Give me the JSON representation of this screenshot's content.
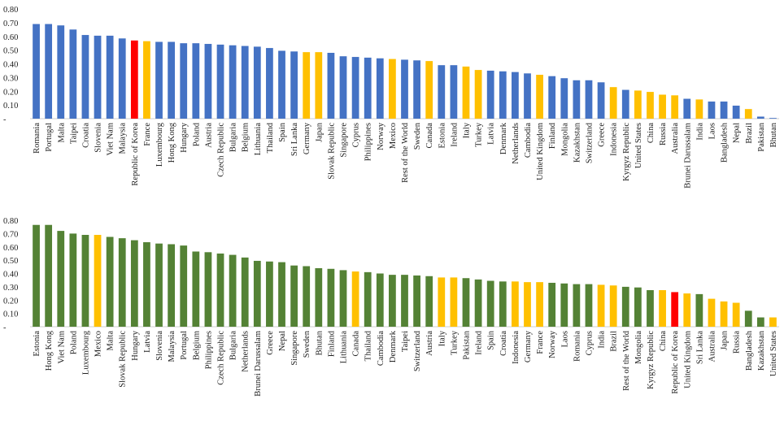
{
  "chart_data": [
    {
      "type": "bar",
      "ylim": [
        0,
        0.8
      ],
      "yticks": [
        "-",
        "0.10",
        "0.20",
        "0.30",
        "0.40",
        "0.50",
        "0.60",
        "0.70",
        "0.80"
      ],
      "grid": false,
      "colors": {
        "default": "#4472C4",
        "highlight_yellow": "#FFC000",
        "highlight_red": "#FF0000"
      },
      "categories": [
        "Romania",
        "Portugal",
        "Malta",
        "Taipei",
        "Croatia",
        "Slovenia",
        "Viet Nam",
        "Malaysia",
        "Republic of Korea",
        "France",
        "Luxembourg",
        "Hong Kong",
        "Hungary",
        "Poland",
        "Austria",
        "Czech Republic",
        "Bulgaria",
        "Belgium",
        "Lithuania",
        "Thailand",
        "Spain",
        "Sri Lanka",
        "Germany",
        "Japan",
        "Slovak Republic",
        "Singapore",
        "Cyprus",
        "Philippines",
        "Norway",
        "Mexico",
        "Rest of the World",
        "Sweden",
        "Canada",
        "Estonia",
        "Ireland",
        "Italy",
        "Turkey",
        "Latvia",
        "Denmark",
        "Netherlands",
        "Cambodia",
        "United Kingdom",
        "Finland",
        "Mongolia",
        "Kazakhstan",
        "Switzerland",
        "Greece",
        "Indonesia",
        "Kyrgyz Republic",
        "United States",
        "China",
        "Russia",
        "Australia",
        "Brunei Darussalam",
        "India",
        "Laos",
        "Bangladesh",
        "Nepal",
        "Brazil",
        "Pakistan",
        "Bhutan"
      ],
      "values": [
        0.69,
        0.69,
        0.68,
        0.65,
        0.61,
        0.605,
        0.605,
        0.585,
        0.57,
        0.565,
        0.56,
        0.56,
        0.55,
        0.55,
        0.545,
        0.54,
        0.535,
        0.53,
        0.525,
        0.515,
        0.495,
        0.49,
        0.485,
        0.485,
        0.48,
        0.455,
        0.45,
        0.445,
        0.44,
        0.435,
        0.43,
        0.425,
        0.42,
        0.39,
        0.39,
        0.38,
        0.355,
        0.35,
        0.345,
        0.34,
        0.33,
        0.32,
        0.31,
        0.295,
        0.28,
        0.28,
        0.265,
        0.23,
        0.21,
        0.205,
        0.195,
        0.175,
        0.17,
        0.145,
        0.14,
        0.125,
        0.125,
        0.095,
        0.07,
        0.015,
        0.005
      ],
      "highlights": {
        "Republic of Korea": "red",
        "France": "yellow",
        "Germany": "yellow",
        "Japan": "yellow",
        "Mexico": "yellow",
        "Canada": "yellow",
        "Italy": "yellow",
        "Turkey": "yellow",
        "United Kingdom": "yellow",
        "Indonesia": "yellow",
        "United States": "yellow",
        "China": "yellow",
        "Russia": "yellow",
        "Australia": "yellow",
        "India": "yellow",
        "Brazil": "yellow"
      }
    },
    {
      "type": "bar",
      "ylim": [
        0,
        0.8
      ],
      "yticks": [
        "-",
        "0.10",
        "0.20",
        "0.30",
        "0.40",
        "0.50",
        "0.60",
        "0.70",
        "0.80"
      ],
      "grid": false,
      "colors": {
        "default": "#548235",
        "highlight_yellow": "#FFC000",
        "highlight_red": "#FF0000"
      },
      "categories": [
        "Estonia",
        "Hong Kong",
        "Viet Nam",
        "Poland",
        "Luxembourg",
        "Mexico",
        "Malta",
        "Slovak Republic",
        "Hungary",
        "Latvia",
        "Slovenia",
        "Malaysia",
        "Portugal",
        "Belgium",
        "Philippines",
        "Czech Republic",
        "Bulgaria",
        "Netherlands",
        "Brunei Darussalam",
        "Greece",
        "Nepal",
        "Singapore",
        "Sweden",
        "Bhutan",
        "Finland",
        "Lithuania",
        "Canada",
        "Thailand",
        "Cambodia",
        "Denmark",
        "Taipei",
        "Switzerland",
        "Austria",
        "Italy",
        "Turkey",
        "Pakistan",
        "Ireland",
        "Spain",
        "Croatia",
        "Indonesia",
        "Germany",
        "France",
        "Norway",
        "Laos",
        "Romania",
        "Cyprus",
        "India",
        "Brazil",
        "Rest of the World",
        "Mongolia",
        "Kyrgyz Republic",
        "China",
        "Republic of Korea",
        "United Kingdom",
        "Sri Lanka",
        "Australia",
        "Japan",
        "Russia",
        "Bangladesh",
        "Kazakhstan",
        "United States"
      ],
      "values": [
        0.765,
        0.765,
        0.72,
        0.7,
        0.69,
        0.69,
        0.675,
        0.665,
        0.65,
        0.635,
        0.625,
        0.62,
        0.61,
        0.565,
        0.56,
        0.55,
        0.54,
        0.52,
        0.495,
        0.49,
        0.485,
        0.46,
        0.455,
        0.44,
        0.435,
        0.425,
        0.415,
        0.41,
        0.4,
        0.39,
        0.39,
        0.385,
        0.38,
        0.37,
        0.37,
        0.365,
        0.355,
        0.345,
        0.34,
        0.34,
        0.335,
        0.335,
        0.33,
        0.325,
        0.32,
        0.32,
        0.315,
        0.31,
        0.3,
        0.295,
        0.275,
        0.275,
        0.26,
        0.25,
        0.245,
        0.21,
        0.19,
        0.18,
        0.12,
        0.07,
        0.07
      ],
      "highlights": {
        "Mexico": "yellow",
        "Canada": "yellow",
        "Italy": "yellow",
        "Turkey": "yellow",
        "Indonesia": "yellow",
        "Germany": "yellow",
        "France": "yellow",
        "India": "yellow",
        "Brazil": "yellow",
        "China": "yellow",
        "United Kingdom": "yellow",
        "Australia": "yellow",
        "Japan": "yellow",
        "Russia": "yellow",
        "United States": "yellow",
        "Republic of Korea": "red"
      }
    }
  ]
}
